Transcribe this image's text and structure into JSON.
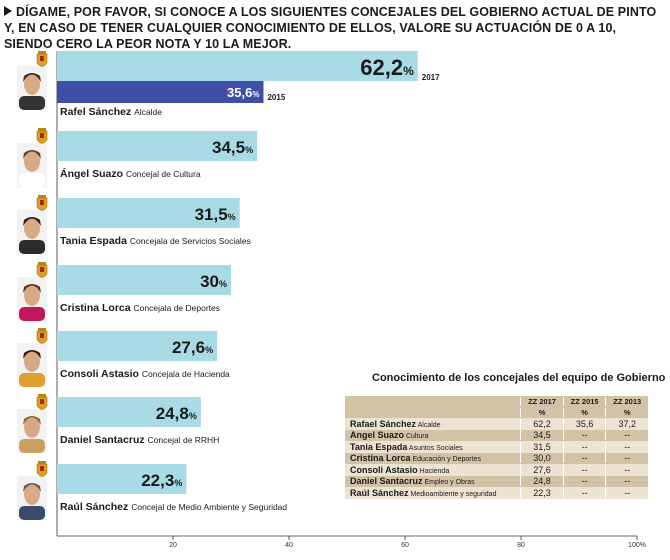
{
  "question": "DÍGAME, POR FAVOR, SI CONOCE A LOS SIGUIENTES CONCEJALES DEL GOBIERNO ACTUAL DE PINTO Y, EN CASO DE TENER CUALQUIER CONOCIMIENTO DE ELLOS, VALORE SU ACTUACIÓN DE 0 A 10, SIENDO CERO LA PEOR NOTA Y 10 LA MEJOR.",
  "colors": {
    "bar_2017": "#a8dbe6",
    "bar_2015": "#3f4fa6",
    "table_dark": "#d2c3a6",
    "table_light": "#ece3d2"
  },
  "chart_data": {
    "type": "bar",
    "orientation": "horizontal",
    "xlim": [
      0,
      100
    ],
    "x_ticks": [
      "20",
      "40",
      "60",
      "80",
      "100%"
    ],
    "series": [
      {
        "name": "2017",
        "values": [
          62.2,
          34.5,
          31.5,
          30,
          27.6,
          24.8,
          22.3
        ],
        "labels": [
          "62,2",
          "34,5",
          "31,5",
          "30",
          "27,6",
          "24,8",
          "22,3"
        ]
      },
      {
        "name": "2015",
        "values": [
          35.6,
          null,
          null,
          null,
          null,
          null,
          null
        ],
        "labels": [
          "35,6",
          "",
          "",
          "",
          "",
          "",
          ""
        ]
      }
    ],
    "percent_sign": "%",
    "people": [
      {
        "name": "Rafel Sánchez",
        "role": "Alcalde"
      },
      {
        "name": "Ángel Suazo",
        "role": "Concejal de Cultura"
      },
      {
        "name": "Tania Espada",
        "role": "Concejala de Servicios Sociales"
      },
      {
        "name": "Cristina Lorca",
        "role": "Concejala de Deportes"
      },
      {
        "name": "Consoli Astasio",
        "role": "Concejala de Hacienda"
      },
      {
        "name": "Daniel Santacruz",
        "role": "Concejal de RRHH"
      },
      {
        "name": "Raúl Sánchez",
        "role": "Concejal de Medio Ambiente y Seguridad"
      }
    ]
  },
  "table": {
    "title": "Conocimiento de los concejales del equipo de Gobierno",
    "headers": [
      "ZZ 2017",
      "ZZ 2015",
      "ZZ 2013"
    ],
    "units": [
      "%",
      "%",
      "%"
    ],
    "rows": [
      {
        "name": "Rafael Sánchez",
        "role": "Alcalde",
        "v2017": "62,2",
        "v2015": "35,6",
        "v2013": "37,2"
      },
      {
        "name": "Angel Suazo",
        "role": "Cultura",
        "v2017": "34,5",
        "v2015": "--",
        "v2013": "--"
      },
      {
        "name": "Tania Espada",
        "role": "Asuntos Sociales",
        "v2017": "31,5",
        "v2015": "--",
        "v2013": "--"
      },
      {
        "name": "Cristina Lorca",
        "role": "Educación y Deportes",
        "v2017": "30,0",
        "v2015": "--",
        "v2013": "--"
      },
      {
        "name": "Consoli Astasio",
        "role": "Hacienda",
        "v2017": "27,6",
        "v2015": "--",
        "v2013": "--"
      },
      {
        "name": "Daniel Santacruz",
        "role": "Empleo y Obras",
        "v2017": "24,8",
        "v2015": "--",
        "v2013": "--"
      },
      {
        "name": "Raúl Sánchez",
        "role": "Medioambiente y seguridad",
        "v2017": "22,3",
        "v2015": "--",
        "v2013": "--"
      }
    ]
  }
}
